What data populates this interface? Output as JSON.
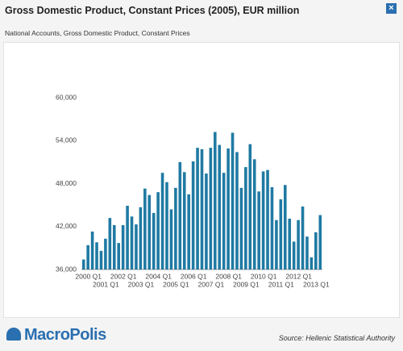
{
  "chart_data": {
    "type": "bar",
    "title": "Gross Domestic Product, Constant Prices (2005), EUR million",
    "subtitle": "National Accounts, Gross Domestic Product, Constant Prices",
    "source": "Source: Hellenic Statistical Authority",
    "logo": "MacroPolis",
    "categories": [
      "2000 Q1",
      null,
      null,
      null,
      "2001 Q1",
      null,
      null,
      null,
      "2002 Q1",
      null,
      null,
      null,
      "2003 Q1",
      null,
      null,
      null,
      "2004 Q1",
      null,
      null,
      null,
      "2005 Q1",
      null,
      null,
      null,
      "2006 Q1",
      null,
      null,
      null,
      "2007 Q1",
      null,
      null,
      null,
      "2008 Q1",
      null,
      null,
      null,
      "2009 Q1",
      null,
      null,
      null,
      "2010 Q1",
      null,
      null,
      null,
      "2011 Q1",
      null,
      null,
      null,
      "2012 Q1",
      null,
      null,
      null,
      "2013 Q1",
      null,
      null
    ],
    "values": [
      37400,
      39400,
      41300,
      39800,
      38600,
      40300,
      43200,
      42200,
      39700,
      42200,
      44900,
      43400,
      42300,
      44700,
      47300,
      46400,
      43900,
      46800,
      49500,
      48200,
      44400,
      47400,
      51000,
      49600,
      46500,
      51100,
      53000,
      52800,
      49400,
      53000,
      55200,
      53400,
      49500,
      52900,
      55100,
      52400,
      47400,
      50300,
      53500,
      51400,
      46900,
      49700,
      49900,
      47500,
      42900,
      45800,
      47800,
      43100,
      39900,
      42900,
      44800,
      40600,
      37700,
      41200,
      43600
    ],
    "color": "#1f7aa3",
    "ylim": [
      36000,
      60000
    ],
    "yticks": [
      {
        "value": 36000,
        "label": "36,000"
      },
      {
        "value": 42000,
        "label": "42,000"
      },
      {
        "value": 48000,
        "label": "48,000"
      },
      {
        "value": 54000,
        "label": "54,000"
      },
      {
        "value": 60000,
        "label": "60,000"
      }
    ],
    "grid": false
  }
}
